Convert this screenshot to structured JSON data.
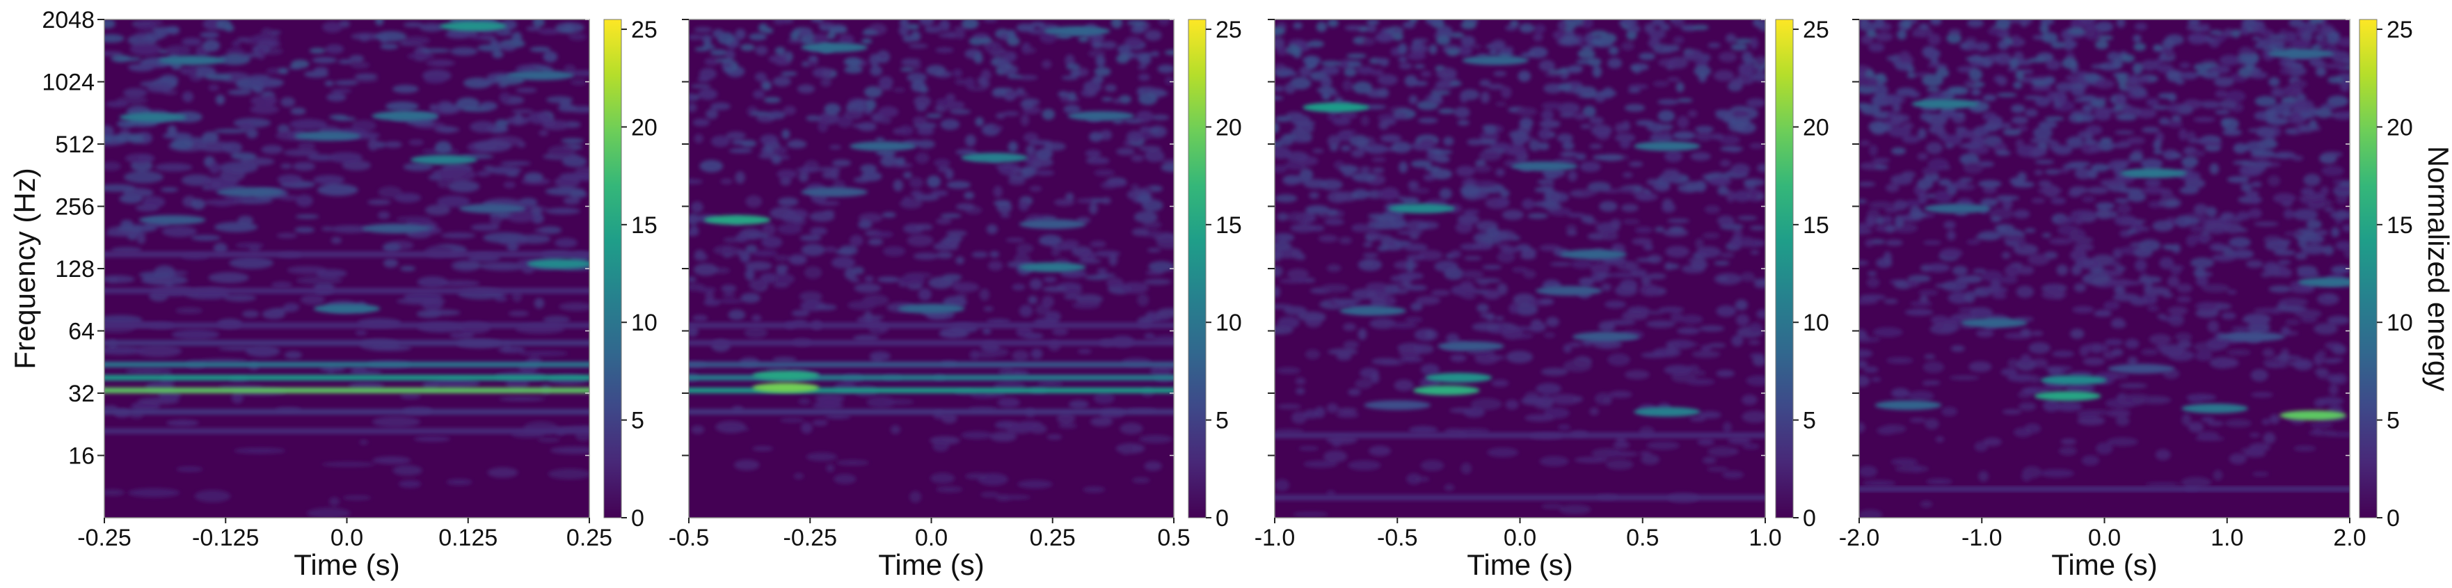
{
  "chart_data": {
    "type": "heatmap",
    "colormap": [
      "#440154",
      "#482878",
      "#3e4989",
      "#31688e",
      "#26828e",
      "#1f9e89",
      "#35b779",
      "#6ece58",
      "#b5de2b",
      "#fde725"
    ],
    "shared": {
      "ylabel": "Frequency (Hz)",
      "xlabel": "Time (s)",
      "colorbar_label": "Normalized energy",
      "yscale": "log2",
      "ylim": [
        8,
        2048
      ],
      "yticks": [
        16,
        32,
        64,
        128,
        256,
        512,
        1024,
        2048
      ],
      "ytick_labels": [
        "16",
        "32",
        "64",
        "128",
        "256",
        "512",
        "1024",
        "2048"
      ],
      "colorbar_range": [
        0,
        25.5
      ],
      "colorbar_ticks": [
        0,
        5,
        10,
        15,
        20,
        25
      ],
      "colorbar_tick_labels": [
        "0",
        "5",
        "10",
        "15",
        "20",
        "25"
      ]
    },
    "panels": [
      {
        "xlim": [
          -0.25,
          0.25
        ],
        "xticks": [
          -0.25,
          -0.125,
          0.0,
          0.125,
          0.25
        ],
        "xtick_labels": [
          "-0.25",
          "-0.125",
          "0.0",
          "0.125",
          "0.25"
        ],
        "show_ylabel": true,
        "show_ytick_labels": true,
        "show_colorbar_label": false,
        "bands": [
          {
            "t0": -0.25,
            "t1": 0.25,
            "f": 33,
            "e": 19
          },
          {
            "t0": -0.25,
            "t1": 0.25,
            "f": 38,
            "e": 14
          },
          {
            "t0": -0.25,
            "t1": 0.25,
            "f": 44,
            "e": 10
          },
          {
            "t0": -0.25,
            "t1": 0.25,
            "f": 26,
            "e": 4
          },
          {
            "t0": -0.25,
            "t1": 0.25,
            "f": 21,
            "e": 3
          },
          {
            "t0": -0.25,
            "t1": 0.25,
            "f": 56,
            "e": 4
          },
          {
            "t0": -0.25,
            "t1": 0.25,
            "f": 68,
            "e": 3
          },
          {
            "t0": -0.25,
            "t1": 0.25,
            "f": 100,
            "e": 3
          },
          {
            "t0": -0.25,
            "t1": 0.25,
            "f": 150,
            "e": 3
          }
        ],
        "blobs": [
          {
            "t": 0.0,
            "f": 82,
            "e": 9
          },
          {
            "t": 0.22,
            "f": 135,
            "e": 12
          },
          {
            "t": 0.1,
            "f": 430,
            "e": 11
          },
          {
            "t": 0.06,
            "f": 700,
            "e": 9
          },
          {
            "t": -0.2,
            "f": 690,
            "e": 10
          },
          {
            "t": -0.02,
            "f": 560,
            "e": 8
          },
          {
            "t": -0.1,
            "f": 300,
            "e": 7
          },
          {
            "t": 0.15,
            "f": 250,
            "e": 7
          },
          {
            "t": 0.05,
            "f": 200,
            "e": 7
          },
          {
            "t": -0.18,
            "f": 220,
            "e": 7
          },
          {
            "t": 0.13,
            "f": 1900,
            "e": 13
          },
          {
            "t": -0.16,
            "f": 1300,
            "e": 9
          },
          {
            "t": 0.2,
            "f": 1100,
            "e": 8
          }
        ]
      },
      {
        "xlim": [
          -0.5,
          0.5
        ],
        "xticks": [
          -0.5,
          -0.25,
          0.0,
          0.25,
          0.5
        ],
        "xtick_labels": [
          "-0.5",
          "-0.25",
          "0.0",
          "0.25",
          "0.5"
        ],
        "show_ylabel": false,
        "show_ytick_labels": false,
        "show_colorbar_label": false,
        "bands": [
          {
            "t0": -0.5,
            "t1": 0.5,
            "f": 33,
            "e": 14
          },
          {
            "t0": -0.5,
            "t1": 0.5,
            "f": 38,
            "e": 11
          },
          {
            "t0": -0.5,
            "t1": 0.5,
            "f": 44,
            "e": 7
          },
          {
            "t0": -0.5,
            "t1": 0.5,
            "f": 26,
            "e": 4
          },
          {
            "t0": -0.5,
            "t1": 0.5,
            "f": 56,
            "e": 3
          },
          {
            "t0": -0.5,
            "t1": 0.5,
            "f": 68,
            "e": 3
          }
        ],
        "blobs": [
          {
            "t": -0.3,
            "f": 34,
            "e": 20
          },
          {
            "t": -0.3,
            "f": 39,
            "e": 15
          },
          {
            "t": -0.4,
            "f": 220,
            "e": 15
          },
          {
            "t": 0.25,
            "f": 130,
            "e": 10
          },
          {
            "t": 0.0,
            "f": 82,
            "e": 8
          },
          {
            "t": 0.13,
            "f": 440,
            "e": 11
          },
          {
            "t": 0.25,
            "f": 210,
            "e": 7
          },
          {
            "t": -0.2,
            "f": 300,
            "e": 7
          },
          {
            "t": -0.1,
            "f": 500,
            "e": 8
          },
          {
            "t": 0.35,
            "f": 700,
            "e": 8
          },
          {
            "t": -0.2,
            "f": 1500,
            "e": 9
          },
          {
            "t": 0.3,
            "f": 1800,
            "e": 8
          }
        ]
      },
      {
        "xlim": [
          -1.0,
          1.0
        ],
        "xticks": [
          -1.0,
          -0.5,
          0.0,
          0.5,
          1.0
        ],
        "xtick_labels": [
          "-1.0",
          "-0.5",
          "0.0",
          "0.5",
          "1.0"
        ],
        "show_ylabel": false,
        "show_ytick_labels": false,
        "show_colorbar_label": false,
        "bands": [
          {
            "t0": -1.0,
            "t1": 1.0,
            "f": 20,
            "e": 3
          },
          {
            "t0": -1.0,
            "t1": 1.0,
            "f": 10,
            "e": 3
          }
        ],
        "blobs": [
          {
            "t": -0.3,
            "f": 33,
            "e": 16
          },
          {
            "t": -0.25,
            "f": 38,
            "e": 13
          },
          {
            "t": 0.6,
            "f": 26,
            "e": 11
          },
          {
            "t": -0.5,
            "f": 28,
            "e": 6
          },
          {
            "t": -0.2,
            "f": 54,
            "e": 7
          },
          {
            "t": 0.35,
            "f": 60,
            "e": 7
          },
          {
            "t": -0.6,
            "f": 80,
            "e": 8
          },
          {
            "t": 0.2,
            "f": 100,
            "e": 7
          },
          {
            "t": -0.4,
            "f": 250,
            "e": 12
          },
          {
            "t": 0.3,
            "f": 150,
            "e": 8
          },
          {
            "t": -0.75,
            "f": 770,
            "e": 14
          },
          {
            "t": 0.6,
            "f": 500,
            "e": 9
          },
          {
            "t": 0.1,
            "f": 400,
            "e": 8
          },
          {
            "t": -0.1,
            "f": 1300,
            "e": 8
          }
        ]
      },
      {
        "xlim": [
          -2.0,
          2.0
        ],
        "xticks": [
          -2.0,
          -1.0,
          0.0,
          1.0,
          2.0
        ],
        "xtick_labels": [
          "-2.0",
          "-1.0",
          "0.0",
          "1.0",
          "2.0"
        ],
        "show_ylabel": false,
        "show_ytick_labels": false,
        "show_colorbar_label": true,
        "bands": [
          {
            "t0": -2.0,
            "t1": 2.0,
            "f": 11,
            "e": 3
          }
        ],
        "blobs": [
          {
            "t": 1.7,
            "f": 25,
            "e": 19
          },
          {
            "t": -0.3,
            "f": 31,
            "e": 15
          },
          {
            "t": -0.25,
            "f": 37,
            "e": 12
          },
          {
            "t": 0.9,
            "f": 27,
            "e": 10
          },
          {
            "t": -1.6,
            "f": 28,
            "e": 8
          },
          {
            "t": 0.3,
            "f": 42,
            "e": 6
          },
          {
            "t": -0.9,
            "f": 70,
            "e": 8
          },
          {
            "t": 1.2,
            "f": 60,
            "e": 6
          },
          {
            "t": 1.85,
            "f": 110,
            "e": 9
          },
          {
            "t": -1.2,
            "f": 250,
            "e": 8
          },
          {
            "t": -1.3,
            "f": 800,
            "e": 10
          },
          {
            "t": 0.4,
            "f": 370,
            "e": 10
          },
          {
            "t": 1.6,
            "f": 1400,
            "e": 8
          }
        ]
      }
    ]
  }
}
